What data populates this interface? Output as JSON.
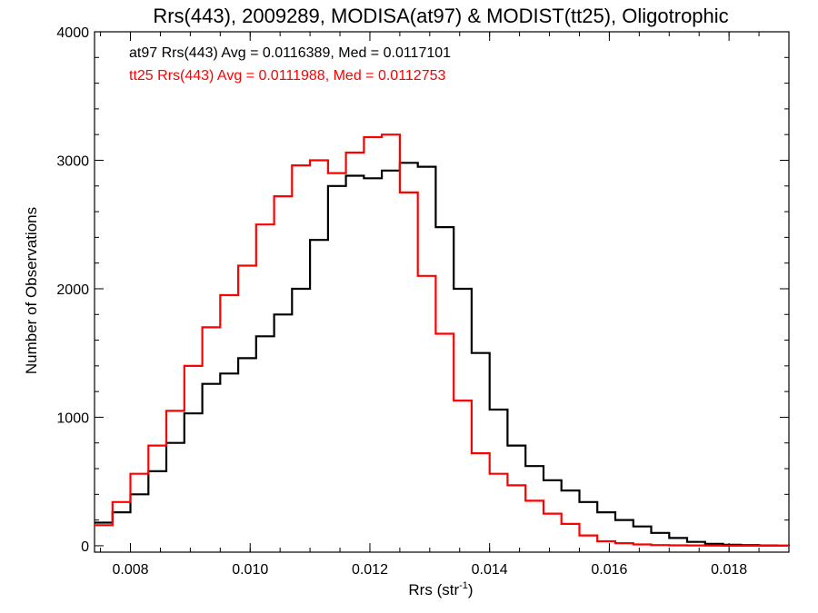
{
  "chart_data": {
    "type": "line",
    "title": "Rrs(443), 2009289, MODISA(at97) & MODIST(tt25), Oligotrophic",
    "xlabel": "Rrs (str",
    "xlabel_superscript": "-1",
    "xlabel_suffix": ")",
    "ylabel": "Number of Observations",
    "xlim": [
      0.0074,
      0.019
    ],
    "ylim": [
      -50,
      4000
    ],
    "xticks": [
      {
        "value": 0.008,
        "label": "0.008"
      },
      {
        "value": 0.01,
        "label": "0.010"
      },
      {
        "value": 0.012,
        "label": "0.012"
      },
      {
        "value": 0.014,
        "label": "0.014"
      },
      {
        "value": 0.016,
        "label": "0.016"
      },
      {
        "value": 0.018,
        "label": "0.018"
      }
    ],
    "yticks": [
      {
        "value": 0,
        "label": "0"
      },
      {
        "value": 1000,
        "label": "1000"
      },
      {
        "value": 2000,
        "label": "2000"
      },
      {
        "value": 3000,
        "label": "3000"
      },
      {
        "value": 4000,
        "label": "4000"
      }
    ],
    "legend_position": "top-left",
    "grid": false,
    "series": [
      {
        "name": "at97",
        "color": "#000000",
        "legend": "at97 Rrs(443) Avg = 0.0116389, Med = 0.0117101",
        "x": [
          0.0074,
          0.0077,
          0.008,
          0.0083,
          0.0086,
          0.0089,
          0.0092,
          0.0095,
          0.0098,
          0.0101,
          0.0104,
          0.0107,
          0.011,
          0.0113,
          0.0116,
          0.0119,
          0.0122,
          0.0125,
          0.0128,
          0.0131,
          0.0134,
          0.0137,
          0.014,
          0.0143,
          0.0146,
          0.0149,
          0.0152,
          0.0155,
          0.0158,
          0.0161,
          0.0164,
          0.0167,
          0.017,
          0.0173,
          0.0176,
          0.0179,
          0.0182,
          0.0185,
          0.0188,
          0.019
        ],
        "y": [
          180,
          260,
          400,
          580,
          800,
          1030,
          1260,
          1340,
          1460,
          1630,
          1800,
          2000,
          2380,
          2800,
          2880,
          2860,
          2920,
          2980,
          2950,
          2480,
          2000,
          1500,
          1060,
          780,
          620,
          510,
          430,
          340,
          260,
          200,
          150,
          100,
          60,
          30,
          15,
          8,
          5,
          2,
          1,
          0
        ]
      },
      {
        "name": "tt25",
        "color": "#ff0000",
        "legend": "tt25 Rrs(443) Avg = 0.0111988, Med = 0.0112753",
        "x": [
          0.0074,
          0.0077,
          0.008,
          0.0083,
          0.0086,
          0.0089,
          0.0092,
          0.0095,
          0.0098,
          0.0101,
          0.0104,
          0.0107,
          0.011,
          0.0113,
          0.0116,
          0.0119,
          0.0122,
          0.0125,
          0.0128,
          0.0131,
          0.0134,
          0.0137,
          0.014,
          0.0143,
          0.0146,
          0.0149,
          0.0152,
          0.0155,
          0.0158,
          0.0161,
          0.0164,
          0.0167,
          0.017,
          0.0173,
          0.0176,
          0.0179,
          0.0182,
          0.0185,
          0.0188,
          0.019
        ],
        "y": [
          160,
          340,
          560,
          780,
          1050,
          1400,
          1700,
          1950,
          2180,
          2500,
          2720,
          2960,
          3000,
          2900,
          3060,
          3180,
          3200,
          2750,
          2100,
          1650,
          1130,
          720,
          560,
          470,
          350,
          250,
          170,
          80,
          35,
          20,
          10,
          5,
          3,
          2,
          1,
          0,
          0,
          0,
          0,
          0
        ]
      }
    ]
  }
}
